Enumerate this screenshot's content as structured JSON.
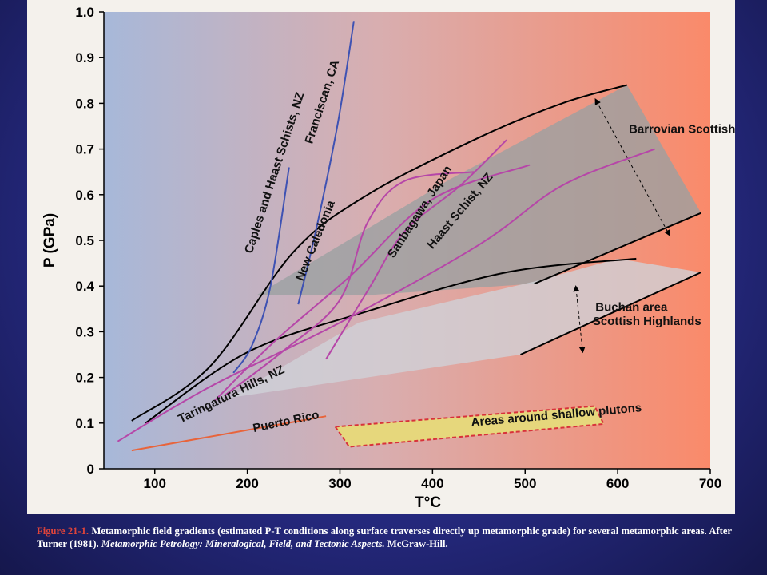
{
  "chart_data": {
    "type": "line",
    "xlabel": "T°C",
    "ylabel": "P (GPa)",
    "xlim": [
      45,
      700
    ],
    "ylim": [
      0,
      1.0
    ],
    "x_ticks": [
      100,
      200,
      300,
      400,
      500,
      600,
      700
    ],
    "y_ticks": [
      0,
      0.1,
      0.2,
      0.3,
      0.4,
      0.5,
      0.6,
      0.7,
      0.8,
      0.9,
      1.0
    ],
    "grid": false,
    "background_gradient": [
      "#a7b8d9",
      "#d8aeb0",
      "#fa8a6a"
    ],
    "regions": [
      {
        "name": "Barrovian Scottish Highlands",
        "fill": "#9aa0a2",
        "polygon": [
          [
            210,
            0.38
          ],
          [
            420,
            0.635
          ],
          [
            610,
            0.84
          ],
          [
            690,
            0.56
          ],
          [
            510,
            0.405
          ],
          [
            330,
            0.38
          ]
        ]
      },
      {
        "name": "Buchan area Scottish Highlands",
        "fill": "#cfd2d8",
        "polygon": [
          [
            180,
            0.155
          ],
          [
            320,
            0.32
          ],
          [
            510,
            0.41
          ],
          [
            600,
            0.46
          ],
          [
            690,
            0.43
          ],
          [
            495,
            0.25
          ]
        ]
      },
      {
        "name": "Areas around shallow plutons",
        "fill": "#e6d77c",
        "polygon": [
          [
            295,
            0.092
          ],
          [
            310,
            0.048
          ],
          [
            585,
            0.098
          ],
          [
            575,
            0.137
          ]
        ]
      }
    ],
    "boundary_lines": [
      {
        "name": "barrovian-upper-boundary",
        "color": "#000000",
        "points": [
          [
            75,
            0.105
          ],
          [
            160,
            0.225
          ],
          [
            250,
            0.475
          ],
          [
            330,
            0.6
          ],
          [
            450,
            0.725
          ],
          [
            540,
            0.8
          ],
          [
            610,
            0.84
          ]
        ]
      },
      {
        "name": "buchan-upper-boundary",
        "color": "#000000",
        "points": [
          [
            90,
            0.1
          ],
          [
            200,
            0.255
          ],
          [
            330,
            0.345
          ],
          [
            480,
            0.43
          ],
          [
            620,
            0.46
          ]
        ]
      },
      {
        "name": "barrovian-lower-boundary",
        "color": "#000000",
        "points": [
          [
            510,
            0.405
          ],
          [
            690,
            0.56
          ]
        ]
      },
      {
        "name": "buchan-lower-boundary",
        "color": "#000000",
        "points": [
          [
            495,
            0.25
          ],
          [
            690,
            0.43
          ]
        ]
      }
    ],
    "series": [
      {
        "name": "Franciscan, CA",
        "color": "#3e52b3",
        "points": [
          [
            255,
            0.36
          ],
          [
            275,
            0.53
          ],
          [
            298,
            0.76
          ],
          [
            315,
            0.98
          ]
        ]
      },
      {
        "name": "Caples and Haast Schists, NZ",
        "color": "#3e52b3",
        "points": [
          [
            185,
            0.21
          ],
          [
            205,
            0.27
          ],
          [
            225,
            0.4
          ],
          [
            245,
            0.66
          ]
        ]
      },
      {
        "name": "New Caledonia",
        "color": "#b646a8",
        "points": [
          [
            165,
            0.15
          ],
          [
            230,
            0.28
          ],
          [
            310,
            0.42
          ],
          [
            400,
            0.59
          ],
          [
            505,
            0.665
          ]
        ]
      },
      {
        "name": "Sanbagawa, Japan",
        "color": "#b646a8",
        "points": [
          [
            175,
            0.16
          ],
          [
            240,
            0.26
          ],
          [
            300,
            0.37
          ],
          [
            330,
            0.54
          ],
          [
            370,
            0.63
          ],
          [
            445,
            0.65
          ]
        ]
      },
      {
        "name": "Haast Schist, NZ",
        "color": "#b646a8",
        "points": [
          [
            285,
            0.24
          ],
          [
            330,
            0.39
          ],
          [
            370,
            0.52
          ],
          [
            430,
            0.62
          ],
          [
            480,
            0.72
          ]
        ]
      },
      {
        "name": "Taringatura Hills, NZ",
        "color": "#b646a8",
        "points": [
          [
            60,
            0.06
          ],
          [
            160,
            0.18
          ],
          [
            300,
            0.32
          ],
          [
            450,
            0.49
          ],
          [
            540,
            0.62
          ],
          [
            640,
            0.7
          ]
        ]
      },
      {
        "name": "Puerto Rico",
        "color": "#e8643b",
        "points": [
          [
            75,
            0.04
          ],
          [
            285,
            0.115
          ]
        ]
      }
    ],
    "labels": [
      {
        "text": "Franciscan, CA",
        "x": 270,
        "y": 0.71,
        "rotate": -72
      },
      {
        "text": "Caples and Haast Schists, NZ",
        "x": 205,
        "y": 0.47,
        "rotate": -72
      },
      {
        "text": "New Caledonia",
        "x": 260,
        "y": 0.41,
        "rotate": -68
      },
      {
        "text": "Sanbagawa, Japan",
        "x": 358,
        "y": 0.46,
        "rotate": -57
      },
      {
        "text": "Haast Schist, NZ",
        "x": 400,
        "y": 0.48,
        "rotate": -50
      },
      {
        "text": "Barrovian Scottish Highlands",
        "x": 612,
        "y": 0.735,
        "rotate": 0
      },
      {
        "text": "Buchan area",
        "x": 576,
        "y": 0.345,
        "rotate": 0
      },
      {
        "text": "Scottish Highlands",
        "x": 573,
        "y": 0.315,
        "rotate": 0
      },
      {
        "text": "Taringatura Hills, NZ",
        "x": 128,
        "y": 0.1,
        "rotate": -26
      },
      {
        "text": "Puerto Rico",
        "x": 207,
        "y": 0.08,
        "rotate": -12
      },
      {
        "text": "Areas around shallow plutons",
        "x": 442,
        "y": 0.093,
        "rotate": -5
      }
    ],
    "arrows": [
      {
        "name": "barrovian-arrow",
        "from": [
          577,
          0.805
        ],
        "to": [
          655,
          0.515
        ]
      },
      {
        "name": "buchan-arrow",
        "from": [
          555,
          0.395
        ],
        "to": [
          562,
          0.26
        ]
      }
    ]
  },
  "caption": {
    "figure_number": "Figure 21-1.",
    "text": "Metamorphic field gradients (estimated P-T conditions along surface traverses directly up metamorphic grade) for several metamorphic areas. After Turner (1981).",
    "source_title": "Metamorphic Petrology: Mineralogical, Field, and Tectonic Aspects.",
    "publisher": "McGraw-Hill."
  }
}
